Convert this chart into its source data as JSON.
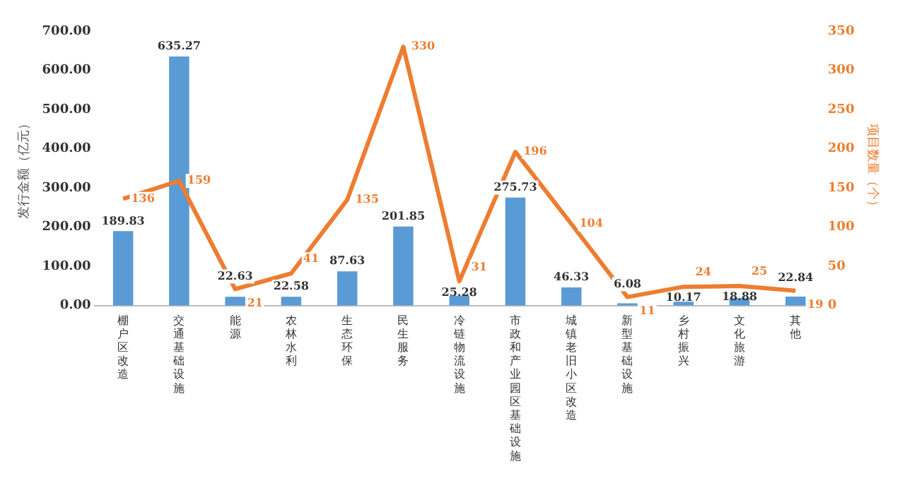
{
  "chart_data": {
    "type": "bar",
    "ylabel": "发行金额（亿元）",
    "y2label": "项目数量（个）",
    "categories": [
      "棚户区改造",
      "交通基础设施",
      "能源",
      "农林水利",
      "生态环保",
      "民生服务",
      "冷链物流设施",
      "市政和产业园区基础设施",
      "城镇老旧小区改造",
      "新型基础设施",
      "乡村振兴",
      "文化旅游",
      "其他"
    ],
    "series": [
      {
        "color": "#5b9bd5",
        "values": [
          189.83,
          635.27,
          22.63,
          22.58,
          87.63,
          201.85,
          25.28,
          275.73,
          46.33,
          6.08,
          10.17,
          18.88,
          22.84
        ]
      },
      {
        "type": "line",
        "axis": "y2",
        "color": "#ed7d31",
        "values": [
          136,
          159,
          21,
          41,
          135,
          330,
          31,
          196,
          104,
          11,
          24,
          25,
          19
        ]
      }
    ],
    "ylim": [
      0,
      700
    ],
    "yticks": [
      {
        "value": 0,
        "label": "0.00"
      },
      {
        "value": 100,
        "label": "100.00"
      },
      {
        "value": 200,
        "label": "200.00"
      },
      {
        "value": 300,
        "label": "300.00"
      },
      {
        "value": 400,
        "label": "400.00"
      },
      {
        "value": 500,
        "label": "500.00"
      },
      {
        "value": 600,
        "label": "600.00"
      },
      {
        "value": 700,
        "label": "700.00"
      }
    ],
    "y2lim": [
      0,
      350
    ],
    "y2ticks": [
      0,
      50,
      100,
      150,
      200,
      250,
      300,
      350
    ],
    "data_labels": true,
    "grid": false,
    "legend": false,
    "marker": "none"
  }
}
